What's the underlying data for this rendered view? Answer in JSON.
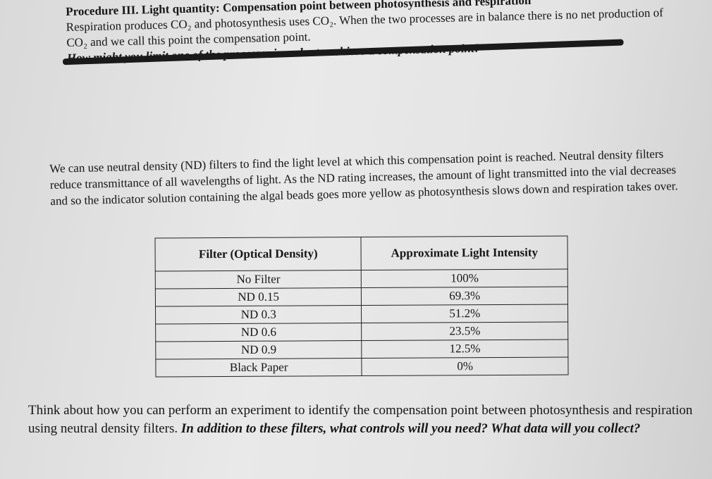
{
  "header": {
    "title": "Procedure III. Light quantity: Compensation point between photosynthesis and respiration",
    "intro": "Respiration produces CO₂ and photosynthesis uses CO₂. When the two processes are in balance there is no net production of CO₂ and we call this point the compensation point.",
    "crossed_out": "How might you limit one of the processes in order to achieve a compensation point?"
  },
  "paragraph": "We can use neutral density (ND) filters to find the light level at which this compensation point is reached. Neutral density filters reduce transmittance of all wavelengths of light. As the ND rating increases, the amount of light transmitted into the vial decreases and so the indicator solution containing the algal beads goes more yellow as photosynthesis slows down and respiration takes over.",
  "table": {
    "columns": [
      "Filter (Optical Density)",
      "Approximate Light Intensity"
    ],
    "rows": [
      [
        "No Filter",
        "100%"
      ],
      [
        "ND 0.15",
        "69.3%"
      ],
      [
        "ND 0.3",
        "51.2%"
      ],
      [
        "ND 0.6",
        "23.5%"
      ],
      [
        "ND 0.9",
        "12.5%"
      ],
      [
        "Black Paper",
        "0%"
      ]
    ]
  },
  "question": {
    "text": "Think about how you can perform an experiment to identify the compensation point between photosynthesis and respiration using neutral density filters.",
    "emphasis": "In addition to these filters, what controls will you need? What data will you collect?"
  }
}
